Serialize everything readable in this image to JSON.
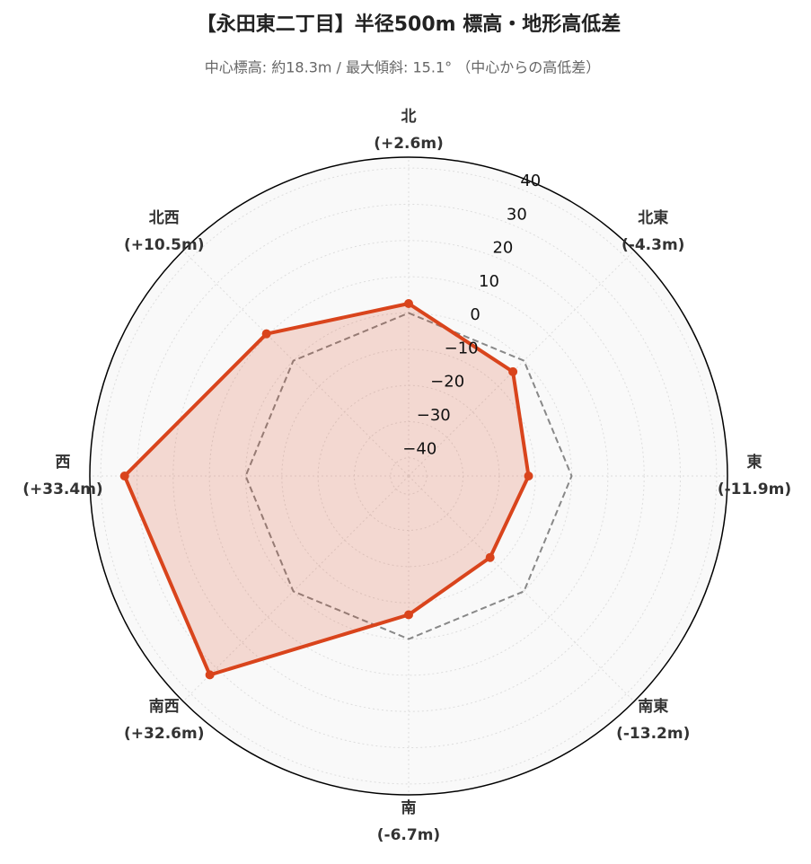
{
  "chart_data": {
    "type": "radar",
    "title": "【永田東二丁目】半径500m 標高・地形高低差",
    "subtitle": "中心標高: 約18.3m / 最大傾斜: 15.1° （中心からの高低差）",
    "categories": [
      "北",
      "北東",
      "東",
      "南東",
      "南",
      "南西",
      "西",
      "北西"
    ],
    "series": [
      {
        "color": "#d9441c",
        "values": [
          2.6,
          -4.3,
          -11.9,
          -13.2,
          -6.7,
          32.6,
          33.4,
          10.5
        ],
        "value_labels": [
          "(+2.6m)",
          "(-4.3m)",
          "(-11.9m)",
          "(-13.2m)",
          "(-6.7m)",
          "(+32.6m)",
          "(+33.4m)",
          "(+10.5m)"
        ]
      },
      {
        "color": "#888888",
        "dash": true,
        "values": [
          0,
          0,
          0,
          0,
          0,
          0,
          0,
          0
        ]
      }
    ],
    "ylim": [
      -45,
      43
    ],
    "yticks": [
      {
        "value": -40,
        "label": "−40"
      },
      {
        "value": -30,
        "label": "−30"
      },
      {
        "value": -20,
        "label": "−20"
      },
      {
        "value": -10,
        "label": "−10"
      },
      0,
      10,
      20,
      30,
      40
    ],
    "grid": true
  }
}
